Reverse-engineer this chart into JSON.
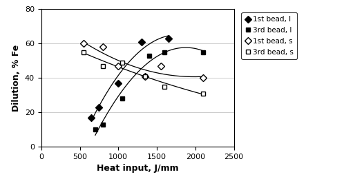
{
  "title": "",
  "xlabel": "Heat input, J/mm",
  "ylabel": "Dilution, % Fe",
  "xlim": [
    0,
    2500
  ],
  "ylim": [
    0,
    80
  ],
  "xticks": [
    0,
    500,
    1000,
    1500,
    2000,
    2500
  ],
  "yticks": [
    0,
    20,
    40,
    60,
    80
  ],
  "series": {
    "bead1_I": {
      "x": [
        650,
        750,
        1000,
        1300,
        1650
      ],
      "y": [
        17,
        23,
        37,
        61,
        63
      ],
      "marker": "D",
      "filled": true,
      "label": "1st bead, I",
      "color": "black",
      "markersize": 5
    },
    "bead3_I": {
      "x": [
        700,
        800,
        1050,
        1400,
        1600,
        2100
      ],
      "y": [
        10,
        13,
        28,
        53,
        55,
        55
      ],
      "marker": "s",
      "filled": true,
      "label": "3rd bead, I",
      "color": "black",
      "markersize": 5
    },
    "bead1_s": {
      "x": [
        550,
        800,
        1000,
        1350,
        1550,
        2100
      ],
      "y": [
        60,
        58,
        47,
        41,
        47,
        40
      ],
      "marker": "D",
      "filled": false,
      "label": "1st bead, s",
      "color": "black",
      "markersize": 5
    },
    "bead3_s": {
      "x": [
        550,
        800,
        1050,
        1350,
        1600,
        2100
      ],
      "y": [
        55,
        47,
        49,
        41,
        35,
        31
      ],
      "marker": "s",
      "filled": false,
      "label": "3rd bead, s",
      "color": "black",
      "markersize": 5
    }
  },
  "background_color": "#ffffff",
  "grid_color": "#cccccc",
  "legend_fontsize": 7.5,
  "axis_label_fontsize": 9,
  "tick_fontsize": 8,
  "axis_label_bold": true
}
